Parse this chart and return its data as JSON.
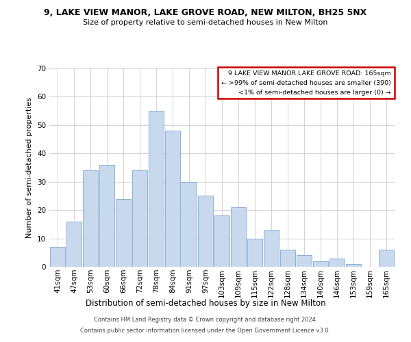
{
  "title": "9, LAKE VIEW MANOR, LAKE GROVE ROAD, NEW MILTON, BH25 5NX",
  "subtitle": "Size of property relative to semi-detached houses in New Milton",
  "xlabel": "Distribution of semi-detached houses by size in New Milton",
  "ylabel": "Number of semi-detached properties",
  "categories": [
    "41sqm",
    "47sqm",
    "53sqm",
    "60sqm",
    "66sqm",
    "72sqm",
    "78sqm",
    "84sqm",
    "91sqm",
    "97sqm",
    "103sqm",
    "109sqm",
    "115sqm",
    "122sqm",
    "128sqm",
    "134sqm",
    "140sqm",
    "146sqm",
    "153sqm",
    "159sqm",
    "165sqm"
  ],
  "values": [
    7,
    16,
    34,
    36,
    24,
    34,
    55,
    48,
    30,
    25,
    18,
    21,
    10,
    13,
    6,
    4,
    2,
    3,
    1,
    0,
    6
  ],
  "bar_color": "#c8d9ed",
  "bar_edge_color": "#7da8d4",
  "ylim": [
    0,
    70
  ],
  "yticks": [
    0,
    10,
    20,
    30,
    40,
    50,
    60,
    70
  ],
  "legend_title": "9 LAKE VIEW MANOR LAKE GROVE ROAD: 165sqm",
  "legend_line1": "← >99% of semi-detached houses are smaller (390)",
  "legend_line2": "<1% of semi-detached houses are larger (0) →",
  "legend_box_color": "#ffffff",
  "legend_box_edge_color": "#cc0000",
  "footer_line1": "Contains HM Land Registry data © Crown copyright and database right 2024.",
  "footer_line2": "Contains public sector information licensed under the Open Government Licence v3.0.",
  "background_color": "#ffffff",
  "grid_color": "#cccccc",
  "title_fontsize": 9,
  "subtitle_fontsize": 8,
  "ylabel_fontsize": 8,
  "xlabel_fontsize": 8.5,
  "tick_fontsize": 7.5,
  "legend_fontsize": 6.8,
  "footer_fontsize": 6.0
}
